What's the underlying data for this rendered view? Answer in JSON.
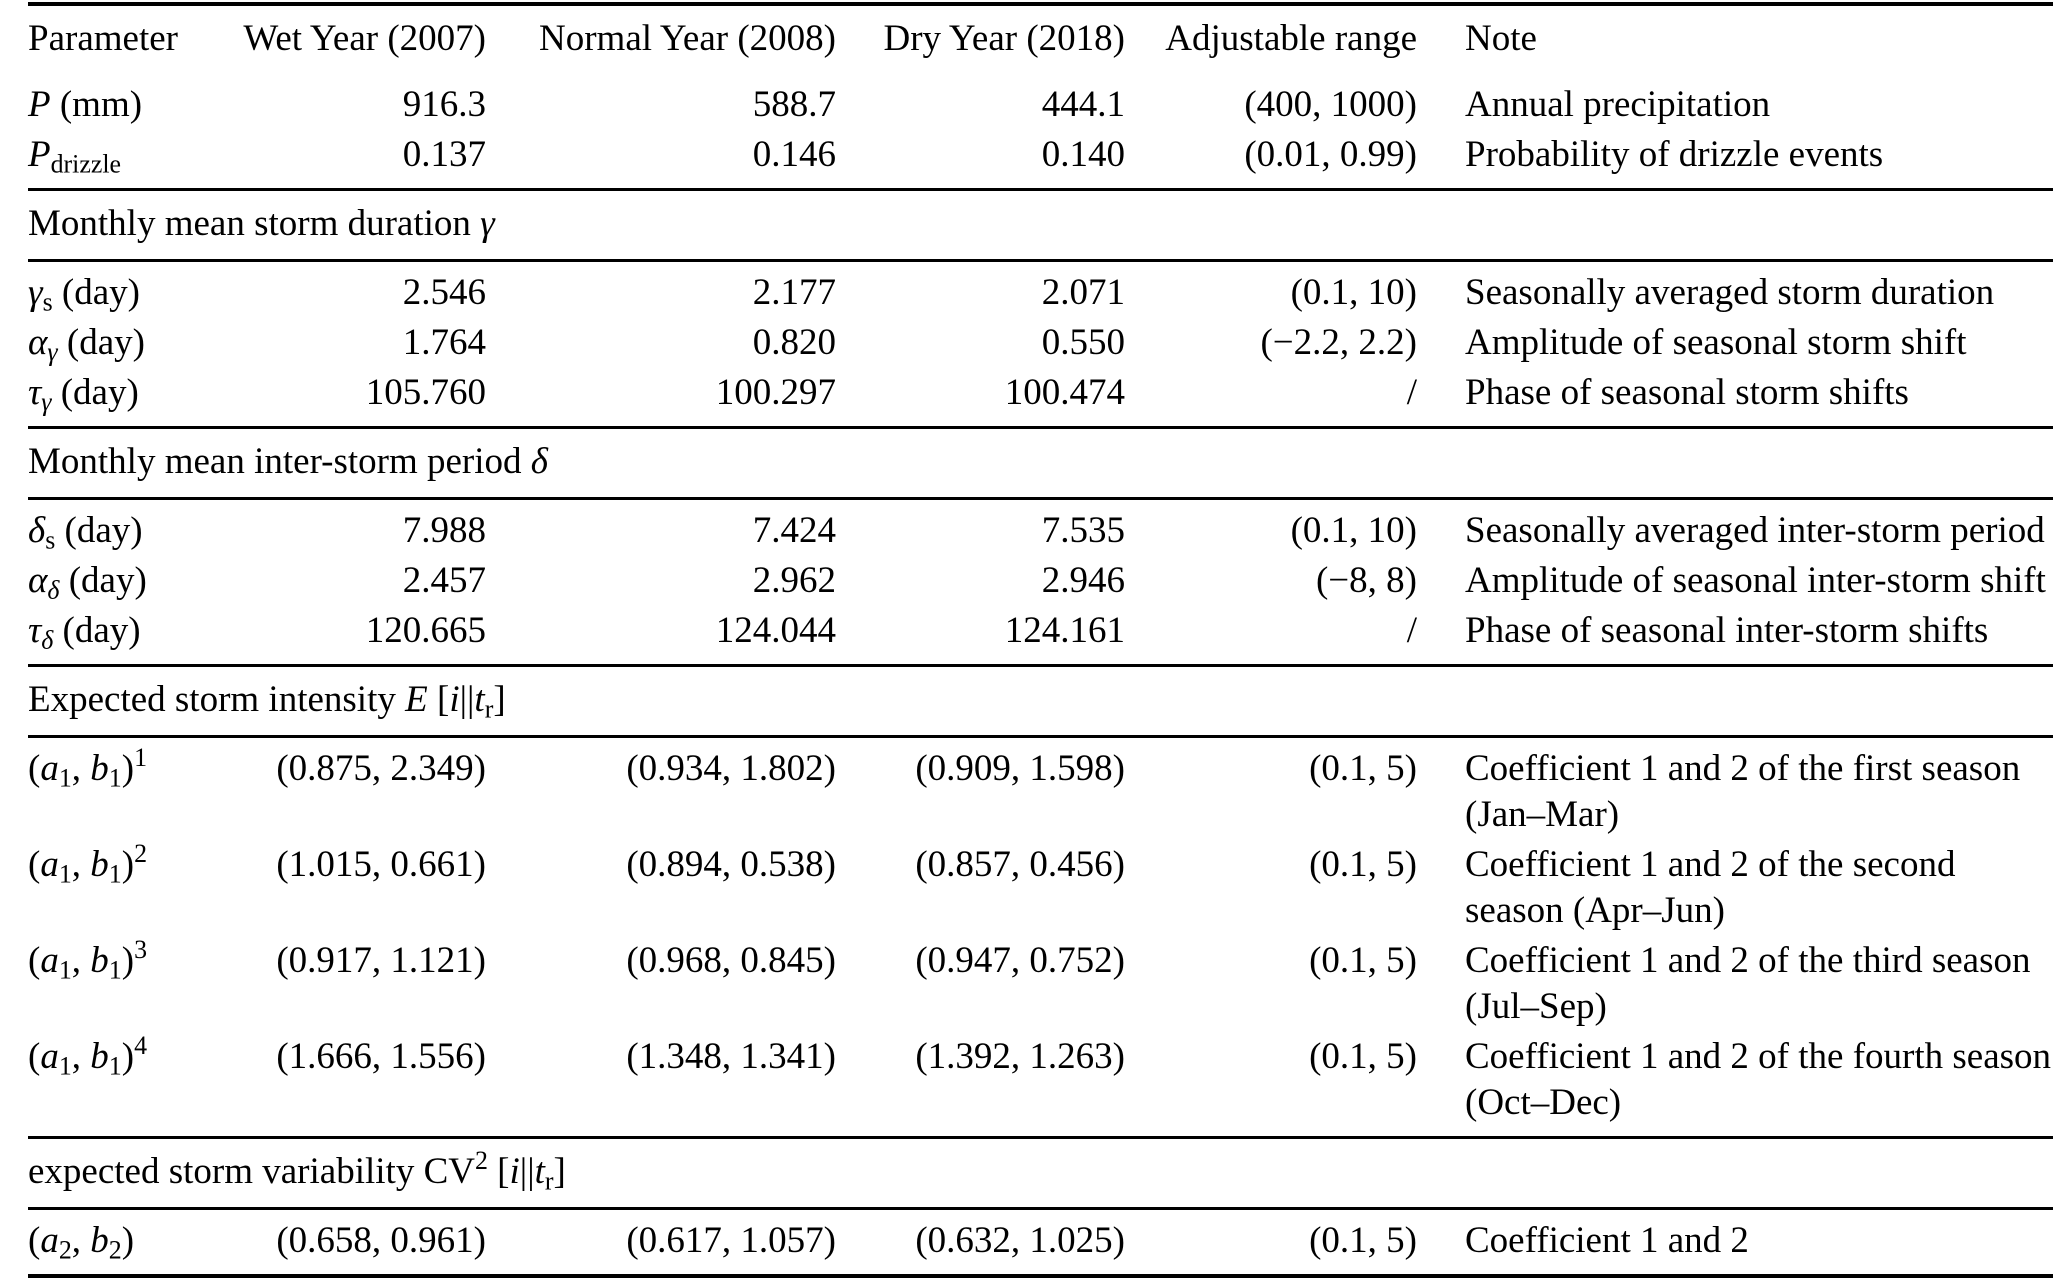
{
  "page": {
    "background_color": "#ffffff",
    "text_color": "#000000",
    "rule_color": "#000000"
  },
  "table": {
    "columns": [
      {
        "label": "Parameter",
        "align": "left"
      },
      {
        "label": "Wet Year (2007)",
        "align": "right"
      },
      {
        "label": "Normal Year (2008)",
        "align": "right"
      },
      {
        "label": "Dry Year (2018)",
        "align": "right"
      },
      {
        "label": "Adjustable range",
        "align": "right"
      },
      {
        "label": "Note",
        "align": "left"
      }
    ],
    "sections": [
      {
        "header_html": null,
        "rows": [
          {
            "param_html": "<i>P</i> (mm)",
            "values": [
              "916.3",
              "588.7",
              "444.1"
            ],
            "range": "(400, 1000)",
            "note": "Annual precipitation"
          },
          {
            "param_html": "<i>P</i><sub>drizzle</sub>",
            "values": [
              "0.137",
              "0.146",
              "0.140"
            ],
            "range": "(0.01, 0.99)",
            "note": "Probability of drizzle events"
          }
        ]
      },
      {
        "header_html": "Monthly mean storm duration <i>γ</i>",
        "rows": [
          {
            "param_html": "<i>γ</i><sub>s</sub> (day)",
            "values": [
              "2.546",
              "2.177",
              "2.071"
            ],
            "range": "(0.1, 10)",
            "note": "Seasonally averaged storm duration"
          },
          {
            "param_html": "<i>α</i><sub><i>γ</i></sub> (day)",
            "values": [
              "1.764",
              "0.820",
              "0.550"
            ],
            "range": "(−2.2, 2.2)",
            "note": "Amplitude of seasonal storm shift"
          },
          {
            "param_html": "<i>τ</i><sub><i>γ</i></sub> (day)",
            "values": [
              "105.760",
              "100.297",
              "100.474"
            ],
            "range": "/",
            "note": "Phase of seasonal storm shifts"
          }
        ]
      },
      {
        "header_html": "Monthly mean inter-storm period <i>δ</i>",
        "rows": [
          {
            "param_html": "<i>δ</i><sub>s</sub> (day)",
            "values": [
              "7.988",
              "7.424",
              "7.535"
            ],
            "range": "(0.1, 10)",
            "note": "Seasonally averaged inter-storm period"
          },
          {
            "param_html": "<i>α</i><sub><i>δ</i></sub> (day)",
            "values": [
              "2.457",
              "2.962",
              "2.946"
            ],
            "range": "(−8, 8)",
            "note": "Amplitude of seasonal inter-storm shift"
          },
          {
            "param_html": "<i>τ</i><sub><i>δ</i></sub> (day)",
            "values": [
              "120.665",
              "124.044",
              "124.161"
            ],
            "range": "/",
            "note": "Phase of seasonal inter-storm shifts"
          }
        ]
      },
      {
        "header_html": "Expected storm intensity <i>E</i> [<i>i</i>||<i>t</i><sub>r</sub>]",
        "rows": [
          {
            "param_html": "(<i>a</i><sub>1</sub>, <i>b</i><sub>1</sub>)<sup>1</sup>",
            "values": [
              "(0.875, 2.349)",
              "(0.934, 1.802)",
              "(0.909, 1.598)"
            ],
            "range": "(0.1, 5)",
            "note": "Coefficient 1 and 2 of the first season (Jan–Mar)"
          },
          {
            "param_html": "(<i>a</i><sub>1</sub>, <i>b</i><sub>1</sub>)<sup>2</sup>",
            "values": [
              "(1.015, 0.661)",
              "(0.894, 0.538)",
              "(0.857, 0.456)"
            ],
            "range": "(0.1, 5)",
            "note": "Coefficient 1 and 2 of the second season (Apr–Jun)"
          },
          {
            "param_html": "(<i>a</i><sub>1</sub>, <i>b</i><sub>1</sub>)<sup>3</sup>",
            "values": [
              "(0.917, 1.121)",
              "(0.968, 0.845)",
              "(0.947, 0.752)"
            ],
            "range": "(0.1, 5)",
            "note": "Coefficient 1 and 2 of the third season (Jul–Sep)"
          },
          {
            "param_html": "(<i>a</i><sub>1</sub>, <i>b</i><sub>1</sub>)<sup>4</sup>",
            "values": [
              "(1.666, 1.556)",
              "(1.348, 1.341)",
              "(1.392, 1.263)"
            ],
            "range": "(0.1, 5)",
            "note": "Coefficient 1 and 2 of the fourth season (Oct–Dec)"
          }
        ]
      },
      {
        "header_html": "expected storm variability CV<sup>2</sup> [<i>i</i>||<i>t</i><sub>r</sub>]",
        "rows": [
          {
            "param_html": "(<i>a</i><sub>2</sub>, <i>b</i><sub>2</sub>)",
            "values": [
              "(0.658, 0.961)",
              "(0.617, 1.057)",
              "(0.632, 1.025)"
            ],
            "range": "(0.1, 5)",
            "note": "Coefficient 1 and 2"
          }
        ]
      }
    ]
  }
}
